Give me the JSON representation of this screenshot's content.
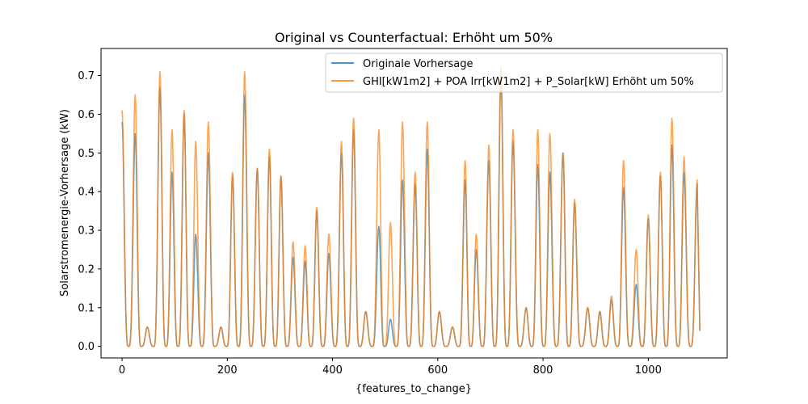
{
  "chart_data": {
    "type": "line",
    "title": "Original vs Counterfactual: Erhöht um 50%",
    "xlabel": "{features_to_change}",
    "ylabel": "Solarstromenergie-Vorhersage (kW)",
    "xlim": [
      -40,
      1150
    ],
    "ylim": [
      -0.03,
      0.77
    ],
    "x_ticks": [
      0,
      200,
      400,
      600,
      800,
      1000
    ],
    "x_tick_labels": [
      "0",
      "200",
      "400",
      "600",
      "800",
      "1000"
    ],
    "y_ticks": [
      0.0,
      0.1,
      0.2,
      0.3,
      0.4,
      0.5,
      0.6,
      0.7
    ],
    "y_tick_labels": [
      "0.0",
      "0.1",
      "0.2",
      "0.3",
      "0.4",
      "0.5",
      "0.6",
      "0.7"
    ],
    "grid": false,
    "legend_position": "upper right",
    "series": [
      {
        "name": "Originale Vorhersage",
        "color": "#1f77b4",
        "peaks": [
          {
            "x": 0,
            "y": 0.58
          },
          {
            "x": 25,
            "y": 0.55
          },
          {
            "x": 48,
            "y": 0.05
          },
          {
            "x": 72,
            "y": 0.67
          },
          {
            "x": 95,
            "y": 0.45
          },
          {
            "x": 118,
            "y": 0.6
          },
          {
            "x": 140,
            "y": 0.29
          },
          {
            "x": 164,
            "y": 0.5
          },
          {
            "x": 188,
            "y": 0.05
          },
          {
            "x": 210,
            "y": 0.44
          },
          {
            "x": 233,
            "y": 0.65
          },
          {
            "x": 257,
            "y": 0.46
          },
          {
            "x": 280,
            "y": 0.49
          },
          {
            "x": 302,
            "y": 0.44
          },
          {
            "x": 325,
            "y": 0.23
          },
          {
            "x": 348,
            "y": 0.22
          },
          {
            "x": 370,
            "y": 0.35
          },
          {
            "x": 393,
            "y": 0.24
          },
          {
            "x": 417,
            "y": 0.5
          },
          {
            "x": 440,
            "y": 0.56
          },
          {
            "x": 463,
            "y": 0.09
          },
          {
            "x": 488,
            "y": 0.31
          },
          {
            "x": 510,
            "y": 0.07
          },
          {
            "x": 533,
            "y": 0.43
          },
          {
            "x": 557,
            "y": 0.42
          },
          {
            "x": 580,
            "y": 0.51
          },
          {
            "x": 603,
            "y": 0.09
          },
          {
            "x": 628,
            "y": 0.05
          },
          {
            "x": 652,
            "y": 0.43
          },
          {
            "x": 673,
            "y": 0.25
          },
          {
            "x": 697,
            "y": 0.48
          },
          {
            "x": 720,
            "y": 0.7
          },
          {
            "x": 743,
            "y": 0.53
          },
          {
            "x": 768,
            "y": 0.1
          },
          {
            "x": 790,
            "y": 0.47
          },
          {
            "x": 813,
            "y": 0.45
          },
          {
            "x": 838,
            "y": 0.5
          },
          {
            "x": 860,
            "y": 0.37
          },
          {
            "x": 885,
            "y": 0.1
          },
          {
            "x": 908,
            "y": 0.09
          },
          {
            "x": 930,
            "y": 0.12
          },
          {
            "x": 953,
            "y": 0.41
          },
          {
            "x": 977,
            "y": 0.16
          },
          {
            "x": 1000,
            "y": 0.33
          },
          {
            "x": 1023,
            "y": 0.44
          },
          {
            "x": 1045,
            "y": 0.52
          },
          {
            "x": 1068,
            "y": 0.45
          },
          {
            "x": 1093,
            "y": 0.42
          }
        ]
      },
      {
        "name": "GHI[kW1m2] + POA Irr[kW1m2] + P_Solar[kW] Erhöht um 50%",
        "color": "#ff7f0e",
        "peaks": [
          {
            "x": 0,
            "y": 0.61
          },
          {
            "x": 25,
            "y": 0.65
          },
          {
            "x": 48,
            "y": 0.05
          },
          {
            "x": 72,
            "y": 0.71
          },
          {
            "x": 95,
            "y": 0.56
          },
          {
            "x": 118,
            "y": 0.61
          },
          {
            "x": 140,
            "y": 0.53
          },
          {
            "x": 164,
            "y": 0.58
          },
          {
            "x": 188,
            "y": 0.05
          },
          {
            "x": 210,
            "y": 0.45
          },
          {
            "x": 233,
            "y": 0.71
          },
          {
            "x": 257,
            "y": 0.46
          },
          {
            "x": 280,
            "y": 0.51
          },
          {
            "x": 302,
            "y": 0.44
          },
          {
            "x": 325,
            "y": 0.27
          },
          {
            "x": 348,
            "y": 0.26
          },
          {
            "x": 370,
            "y": 0.36
          },
          {
            "x": 393,
            "y": 0.29
          },
          {
            "x": 417,
            "y": 0.53
          },
          {
            "x": 440,
            "y": 0.59
          },
          {
            "x": 463,
            "y": 0.09
          },
          {
            "x": 488,
            "y": 0.56
          },
          {
            "x": 510,
            "y": 0.32
          },
          {
            "x": 533,
            "y": 0.58
          },
          {
            "x": 557,
            "y": 0.45
          },
          {
            "x": 580,
            "y": 0.58
          },
          {
            "x": 603,
            "y": 0.09
          },
          {
            "x": 628,
            "y": 0.05
          },
          {
            "x": 652,
            "y": 0.48
          },
          {
            "x": 673,
            "y": 0.29
          },
          {
            "x": 697,
            "y": 0.52
          },
          {
            "x": 720,
            "y": 0.72
          },
          {
            "x": 743,
            "y": 0.56
          },
          {
            "x": 768,
            "y": 0.1
          },
          {
            "x": 790,
            "y": 0.56
          },
          {
            "x": 813,
            "y": 0.55
          },
          {
            "x": 838,
            "y": 0.5
          },
          {
            "x": 860,
            "y": 0.38
          },
          {
            "x": 885,
            "y": 0.1
          },
          {
            "x": 908,
            "y": 0.09
          },
          {
            "x": 930,
            "y": 0.13
          },
          {
            "x": 953,
            "y": 0.48
          },
          {
            "x": 977,
            "y": 0.25
          },
          {
            "x": 1000,
            "y": 0.34
          },
          {
            "x": 1023,
            "y": 0.45
          },
          {
            "x": 1045,
            "y": 0.59
          },
          {
            "x": 1068,
            "y": 0.49
          },
          {
            "x": 1093,
            "y": 0.43
          }
        ]
      }
    ]
  }
}
